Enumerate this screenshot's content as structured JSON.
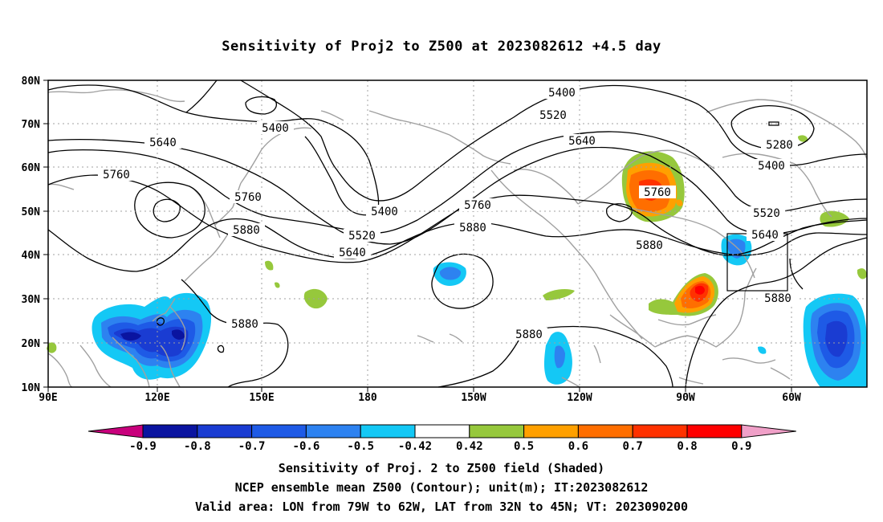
{
  "title": "Sensitivity of Proj2 to Z500 at 2023082612 +4.5 day",
  "map": {
    "lat_labels": [
      "80N",
      "70N",
      "60N",
      "50N",
      "40N",
      "30N",
      "20N",
      "10N"
    ],
    "lon_labels": [
      "90E",
      "120E",
      "150E",
      "180",
      "150W",
      "120W",
      "90W",
      "60W"
    ],
    "contour_labels": [
      {
        "text": "5400",
        "name": "contour-5400-a"
      },
      {
        "text": "5400",
        "name": "contour-5400-b"
      },
      {
        "text": "5400",
        "name": "contour-5400-c"
      },
      {
        "text": "5400",
        "name": "contour-5400-d"
      },
      {
        "text": "5520",
        "name": "contour-5520-a"
      },
      {
        "text": "5520",
        "name": "contour-5520-b"
      },
      {
        "text": "5520",
        "name": "contour-5520-c"
      },
      {
        "text": "5640",
        "name": "contour-5640-a"
      },
      {
        "text": "5640",
        "name": "contour-5640-b"
      },
      {
        "text": "5640",
        "name": "contour-5640-c"
      },
      {
        "text": "5640",
        "name": "contour-5640-d"
      },
      {
        "text": "5760",
        "name": "contour-5760-a"
      },
      {
        "text": "5760",
        "name": "contour-5760-b"
      },
      {
        "text": "5760",
        "name": "contour-5760-c"
      },
      {
        "text": "5760",
        "name": "contour-5760-d"
      },
      {
        "text": "5880",
        "name": "contour-5880-a"
      },
      {
        "text": "5880",
        "name": "contour-5880-b"
      },
      {
        "text": "5880",
        "name": "contour-5880-c"
      },
      {
        "text": "5880",
        "name": "contour-5880-d"
      },
      {
        "text": "5880",
        "name": "contour-5880-e"
      },
      {
        "text": "5280",
        "name": "contour-5280-a"
      }
    ]
  },
  "colorbar": {
    "labels": [
      "-0.9",
      "-0.8",
      "-0.7",
      "-0.6",
      "-0.5",
      "-0.42",
      "0.42",
      "0.5",
      "0.6",
      "0.7",
      "0.8",
      "0.9"
    ],
    "colors": [
      "#c8007c",
      "#0a14a0",
      "#1a3cd2",
      "#1e5ae6",
      "#2d82f0",
      "#14c8f5",
      "#ffffff",
      "#96c83c",
      "#ffa000",
      "#ff6e00",
      "#ff3200",
      "#ff0000",
      "#f0a0c8"
    ]
  },
  "footer": {
    "line1": "Sensitivity of Proj. 2 to Z500 field (Shaded)",
    "line2": "NCEP ensemble mean Z500 (Contour); unit(m); IT:2023082612",
    "line3": "Valid area: LON from 79W to 62W, LAT from 32N to 45N; VT: 2023090200"
  }
}
